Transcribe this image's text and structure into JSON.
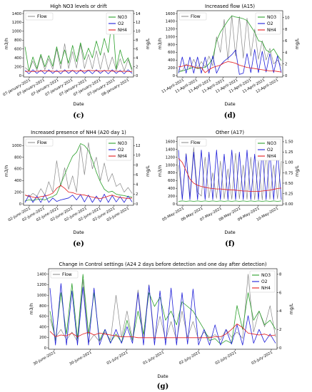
{
  "colors": {
    "Flow": "#888888",
    "NO3": "#2ca02c",
    "O2": "#1f1fd9",
    "NH4": "#e31a1c"
  },
  "panels": [
    {
      "id": "c",
      "title": "High NO3 levels or drift",
      "caption": "(c)",
      "xlabel": "Date",
      "ylabel": "m3/h",
      "ylabel2": "mg/L",
      "xticks": [
        "07-January-2021",
        "07-January-2021",
        "07-January-2021",
        "07-January-2021",
        "07-January-2021",
        "07-January-2021",
        "07-January-2021",
        "08-January-2021"
      ],
      "yticks": [
        "0",
        "200",
        "400",
        "600",
        "800",
        "1000",
        "1200",
        "1400"
      ],
      "y2ticks": [
        "0",
        "2",
        "4",
        "6",
        "8",
        "10",
        "12",
        "14"
      ],
      "legend_left": [
        "Flow"
      ],
      "legend_right": [
        "NO3",
        "O2",
        "NH4"
      ]
    },
    {
      "id": "d",
      "title": "Increased flow (A15)",
      "caption": "(d)",
      "xlabel": "Date",
      "ylabel": "m3/h",
      "ylabel2": "mg/L",
      "xticks": [
        "11-April-2021",
        "11-April-2021",
        "11-April-2021",
        "11-April-2021",
        "11-April-2021",
        "11-April-2021",
        "11-April-2021",
        "12-April-2021"
      ],
      "yticks": [
        "0",
        "200",
        "400",
        "600",
        "800",
        "1000",
        "1200",
        "1400",
        "1600"
      ],
      "y2ticks": [
        "0",
        "2",
        "4",
        "6",
        "8",
        "10"
      ],
      "legend_left": [
        "Flow"
      ],
      "legend_right": [
        "NO3",
        "O2",
        "NH4"
      ]
    },
    {
      "id": "e",
      "title": "Increased presence of NH4 (A20 day 1)",
      "caption": "(e)",
      "xlabel": "Date",
      "ylabel": "m3/h",
      "ylabel2": "mg/L",
      "xticks": [
        "02-June-2021",
        "02-June-2021",
        "02-June-2021",
        "02-June-2021",
        "02-June-2021",
        "02-June-2021",
        "02-June-2021",
        "03-June-2021"
      ],
      "yticks": [
        "0",
        "200",
        "400",
        "600",
        "800",
        "1000"
      ],
      "y2ticks": [
        "0",
        "2",
        "4",
        "6",
        "8",
        "10",
        "12"
      ],
      "legend_left": [
        "Flow"
      ],
      "legend_right": [
        "NO3",
        "O2",
        "NH4"
      ]
    },
    {
      "id": "f",
      "title": "Other (A17)",
      "caption": "(f)",
      "xlabel": "Date",
      "ylabel": "m3/h",
      "ylabel2": "mg/L",
      "xticks": [
        "05-May-2021",
        "06-May-2021",
        "07-May-2021",
        "08-May-2021",
        "09-May-2021",
        "10-May-2021"
      ],
      "yticks": [
        "0",
        "200",
        "400",
        "600",
        "800",
        "1000",
        "1200",
        "1400",
        "1600"
      ],
      "y2ticks": [
        "0.00",
        "0.25",
        "0.50",
        "0.75",
        "1.00",
        "1.25",
        "1.50"
      ],
      "legend_left": [
        "Flow"
      ],
      "legend_right": [
        "NO3",
        "O2",
        "NH4"
      ]
    },
    {
      "id": "g",
      "title": "Change in Control settings (A24 2 days before detection and one day after detection)",
      "caption": "(g)",
      "xlabel": "Date",
      "ylabel": "m3/h",
      "ylabel2": "mg/L",
      "xticks": [
        "30-June-2021",
        "30-June-2021",
        "01-July-2021",
        "01-July-2021",
        "02-July-2021",
        "02-July-2021",
        "03-July-2021"
      ],
      "yticks": [
        "0",
        "200",
        "400",
        "600",
        "800",
        "1000",
        "1200",
        "1400"
      ],
      "y2ticks": [
        "0",
        "2",
        "4",
        "6",
        "8"
      ],
      "legend_left": [
        "Flow"
      ],
      "legend_right": [
        "NO3",
        "O2",
        "NH4"
      ]
    }
  ],
  "chart_data": [
    {
      "type": "line",
      "panel": "c",
      "title": "High NO3 levels or drift",
      "xlabel": "Date",
      "ylabel": "m3/h",
      "y2label": "mg/L",
      "ylim": [
        0,
        1400
      ],
      "y2lim": [
        0,
        14
      ],
      "series": [
        {
          "name": "Flow",
          "axis": "left",
          "values": [
            180,
            110,
            330,
            120,
            440,
            130,
            380,
            140,
            600,
            150,
            720,
            160,
            540,
            170,
            700,
            160,
            480,
            150,
            560,
            140,
            520,
            130,
            420,
            120,
            380,
            110,
            360,
            100
          ]
        },
        {
          "name": "NO3",
          "axis": "right",
          "values": [
            6.5,
            1,
            4.2,
            1.6,
            4.8,
            2,
            4.5,
            2.1,
            6.5,
            2.6,
            5.8,
            2.8,
            6.8,
            3.1,
            7.4,
            3.6,
            6.2,
            4,
            7.8,
            4.6,
            8.4,
            5.2,
            13.6,
            1.5,
            5.8,
            2.8,
            4,
            1.4
          ]
        },
        {
          "name": "O2",
          "axis": "right",
          "values": [
            1.2,
            0.4,
            1.3,
            0.5,
            1.2,
            0.4,
            1.3,
            0.5,
            1.2,
            0.4,
            1.3,
            0.5,
            1.2,
            0.4,
            1.3,
            0.5,
            1.2,
            0.4,
            1.3,
            0.5,
            1.2,
            0.4,
            1.3,
            0.5,
            1.2,
            0.4,
            1.3,
            0.5
          ]
        },
        {
          "name": "NH4",
          "axis": "right",
          "values": [
            0.9,
            1,
            0.9,
            1,
            1,
            1.1,
            1,
            1,
            0.9,
            1,
            1,
            1.1,
            1.1,
            1,
            1.1,
            1,
            1.2,
            1.1,
            1.1,
            1,
            1.1,
            1.1,
            1,
            1,
            0.9,
            1,
            0.9,
            0.9
          ]
        }
      ]
    },
    {
      "type": "line",
      "panel": "d",
      "title": "Increased flow (A15)",
      "xlabel": "Date",
      "ylabel": "m3/h",
      "y2label": "mg/L",
      "ylim": [
        0,
        1600
      ],
      "y2lim": [
        0,
        10.7
      ],
      "series": [
        {
          "name": "Flow",
          "axis": "left",
          "values": [
            150,
            120,
            300,
            180,
            420,
            200,
            360,
            220,
            500,
            250,
            1000,
            600,
            1450,
            400,
            1550,
            500,
            1520,
            450,
            1480,
            500,
            1200,
            420,
            900,
            400,
            700,
            300,
            400,
            250
          ]
        },
        {
          "name": "NO3",
          "axis": "right",
          "values": [
            0.6,
            0.8,
            1,
            1.2,
            1.5,
            1.2,
            1.3,
            1.4,
            2,
            3,
            6,
            7.5,
            8.5,
            9.5,
            10.3,
            10.1,
            10,
            9.8,
            9.5,
            8.5,
            7.5,
            6,
            5.8,
            4.4,
            4,
            4.6,
            3.5,
            2.6
          ]
        },
        {
          "name": "O2",
          "axis": "right",
          "values": [
            0.4,
            3.2,
            0.4,
            3.2,
            0.4,
            3.2,
            0.4,
            3.2,
            0.4,
            3.4,
            0.4,
            1.8,
            2.5,
            3,
            3.6,
            4.4,
            0.2,
            0.4,
            3.8,
            0.5,
            4.5,
            0.5,
            4.2,
            0.6,
            3.8,
            0.5,
            3.4,
            0.5
          ]
        },
        {
          "name": "NH4",
          "axis": "right",
          "values": [
            1.5,
            1.6,
            1.8,
            1.7,
            1.5,
            1.3,
            1.4,
            0.5,
            1,
            1.4,
            1.6,
            1.8,
            2.2,
            2.4,
            2.3,
            2.1,
            1.8,
            1.6,
            1.4,
            1.3,
            1.2,
            1.1,
            1,
            0.9,
            0.8,
            0.8,
            0.7,
            0.6
          ]
        }
      ]
    },
    {
      "type": "line",
      "panel": "e",
      "title": "Increased presence of NH4 (A20 day 1)",
      "xlabel": "Date",
      "ylabel": "m3/h",
      "ylabel2": "mg/L",
      "ylim": [
        0,
        1100
      ],
      "y2lim": [
        0,
        13.2
      ],
      "series": [
        {
          "name": "Flow",
          "axis": "left",
          "values": [
            150,
            120,
            180,
            130,
            260,
            150,
            380,
            200,
            740,
            300,
            620,
            250,
            480,
            200,
            1000,
            500,
            1050,
            600,
            800,
            400,
            700,
            380,
            520,
            300,
            350,
            200,
            280,
            180
          ]
        },
        {
          "name": "NO3",
          "axis": "right",
          "values": [
            0.6,
            0.8,
            0.7,
            0.9,
            1,
            0.8,
            1.2,
            1.5,
            2,
            4,
            6,
            8,
            9.8,
            10.6,
            12.4,
            12,
            11,
            9,
            6.5,
            4.5,
            3,
            2.4,
            2.6,
            2,
            1.8,
            1.7,
            1.5,
            1.4
          ]
        },
        {
          "name": "O2",
          "axis": "right",
          "values": [
            0.3,
            1.8,
            0.3,
            1.6,
            0.3,
            1.9,
            0.3,
            1.2,
            0.5,
            0.8,
            1,
            1.2,
            1.8,
            0.8,
            1.9,
            0.4,
            1.8,
            0.3,
            1.6,
            0.4,
            2,
            0.3,
            1.7,
            0.4,
            1.5,
            0.3,
            1.6,
            0.4
          ]
        },
        {
          "name": "NH4",
          "axis": "right",
          "values": [
            1.8,
            1.6,
            1.4,
            1.2,
            1.5,
            1.6,
            1.8,
            2.2,
            3.2,
            3.8,
            3.2,
            2.4,
            2.3,
            2,
            1.9,
            1.8,
            1.6,
            1.4,
            1.2,
            1.1,
            1.3,
            1.6,
            1.8,
            1.5,
            1.3,
            1.2,
            1.1,
            1.2
          ]
        }
      ]
    },
    {
      "type": "line",
      "panel": "f",
      "title": "Other (A17)",
      "xlabel": "Date",
      "ylabel": "m3/h",
      "ylabel2": "mg/L",
      "ylim": [
        0,
        1650
      ],
      "y2lim": [
        0,
        1.55
      ],
      "series": [
        {
          "name": "Flow",
          "axis": "left",
          "values": [
            1000,
            150,
            1300,
            200,
            1450,
            300,
            200,
            1200,
            150,
            800,
            140,
            1100,
            130,
            900,
            120,
            1300,
            130,
            1000,
            120,
            1200,
            110,
            1100,
            100,
            1350,
            120,
            1000,
            130,
            1100
          ]
        },
        {
          "name": "NO3",
          "axis": "right",
          "values": [
            0.06,
            0.07,
            0.06,
            0.07,
            0.06,
            0.07,
            0.06,
            0.07,
            0.06,
            0.07,
            0.06,
            0.07,
            0.06,
            0.07,
            0.06,
            0.07,
            0.06,
            0.07,
            0.06,
            0.07,
            0.06,
            0.07,
            0.06,
            0.07,
            0.06,
            0.07,
            0.06,
            0.07
          ]
        },
        {
          "name": "O2",
          "axis": "right",
          "values": [
            1.3,
            0.1,
            1.2,
            0.1,
            1.25,
            0.1,
            1.3,
            0.1,
            1.25,
            0.1,
            1.3,
            0.1,
            1.2,
            0.1,
            1.3,
            0.1,
            1.25,
            0.1,
            1.3,
            0.1,
            1.2,
            0.1,
            1.3,
            0.1,
            1.25,
            0.1,
            1.3,
            0.1
          ]
        },
        {
          "name": "NH4",
          "axis": "right",
          "values": [
            1.1,
            1,
            0.8,
            0.6,
            0.5,
            0.45,
            0.42,
            0.4,
            0.38,
            0.37,
            0.36,
            0.36,
            0.35,
            0.34,
            0.34,
            0.33,
            0.32,
            0.31,
            0.31,
            0.3,
            0.3,
            0.3,
            0.31,
            0.32,
            0.33,
            0.35,
            0.37,
            0.38
          ]
        }
      ]
    },
    {
      "type": "line",
      "panel": "g",
      "title": "Change in Control settings (A24 2 days before detection and one day after detection)",
      "xlabel": "Date",
      "ylabel": "m3/h",
      "y2label": "mg/L",
      "ylim": [
        0,
        1450
      ],
      "y2lim": [
        0,
        8.3
      ],
      "series": [
        {
          "name": "Flow",
          "axis": "left",
          "values": [
            550,
            200,
            350,
            150,
            300,
            120,
            1300,
            100,
            250,
            120,
            300,
            150,
            1000,
            200,
            700,
            150,
            1100,
            200,
            1200,
            150,
            600,
            150,
            500,
            150,
            700,
            200,
            500,
            150,
            300,
            200,
            250,
            150,
            350,
            200,
            300,
            180,
            1400,
            300,
            700,
            400,
            800,
            200
          ]
        },
        {
          "name": "NO3",
          "axis": "right",
          "values": [
            4,
            0.8,
            6,
            1.5,
            7,
            1,
            8,
            1.5,
            6,
            0.8,
            2,
            0.6,
            1.5,
            0.6,
            3,
            0.8,
            4,
            1.5,
            6,
            4.5,
            5.5,
            3,
            4,
            2.5,
            5,
            4.5,
            4,
            3,
            2,
            0.8,
            1,
            0.4,
            0.8,
            0.5,
            4.6,
            2,
            6,
            3,
            4,
            2.5,
            3,
            2
          ]
        },
        {
          "name": "O2",
          "axis": "right",
          "values": [
            6.5,
            0.3,
            7,
            0.3,
            6.2,
            0.3,
            6.6,
            0.3,
            6.5,
            0.3,
            2,
            0.5,
            2,
            0.5,
            2.3,
            0.5,
            6,
            0.3,
            6.8,
            0.3,
            6.2,
            0.3,
            6.5,
            0.3,
            6,
            0.4,
            6.4,
            0.3,
            2,
            0.3,
            2.5,
            0.3,
            2,
            0.4,
            2.5,
            0.3,
            3.5,
            0.5,
            2,
            0.6,
            1.5,
            0.5
          ]
        },
        {
          "name": "NH4",
          "axis": "right",
          "values": [
            1.8,
            1.2,
            1.4,
            1.3,
            1.6,
            1.2,
            1.5,
            1.7,
            1.4,
            1.6,
            1.5,
            1.4,
            1.3,
            1.2,
            1.2,
            1.2,
            1.1,
            1.1,
            1.1,
            1.1,
            1.1,
            1.1,
            1.1,
            1.1,
            1.1,
            1.1,
            1.1,
            1.1,
            1.1,
            1.1,
            1.2,
            1.2,
            1.5,
            2,
            2.6,
            2.2,
            1.6,
            1.5,
            1.4,
            1.5,
            1.3,
            1.4
          ]
        }
      ]
    }
  ]
}
